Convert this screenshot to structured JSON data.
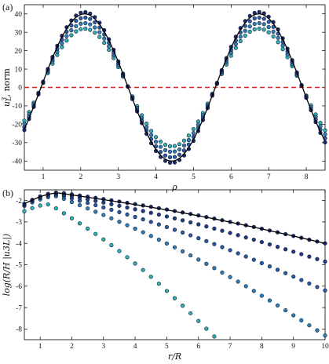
{
  "chart_data": [
    {
      "type": "scatter",
      "panel_label": "(a)",
      "xlabel": "ρ",
      "ylabel_main": "u",
      "ylabel_sup": "3",
      "ylabel_sub": "L",
      "ylabel_rest": ", norm",
      "xlim": [
        0.5,
        8.5
      ],
      "ylim": [
        -45,
        45
      ],
      "x_ticks": [
        1,
        2,
        3,
        4,
        5,
        6,
        7,
        8
      ],
      "y_ticks": [
        -40,
        -30,
        -20,
        -10,
        0,
        10,
        20,
        30,
        40
      ],
      "reference_line": {
        "y": 0,
        "style": "dashed",
        "color": "#e0201b"
      },
      "function_form": "A*sin(ρ - 1.27*(ρ - 0.5) - 4.05) — curves sampled every 0.125",
      "x_start": 0.5,
      "x_step": 0.125,
      "x_count": 65,
      "series": [
        {
          "amplitude": 40,
          "phase": 4.05,
          "freq": 1.355,
          "color": "#1a1e4c",
          "kind": "line"
        },
        {
          "amplitude": 41,
          "phase": 4.05,
          "freq": 1.355,
          "color": "#1e2a6e",
          "kind": "points"
        },
        {
          "amplitude": 38,
          "phase": 4.05,
          "freq": 1.355,
          "color": "#2b5aa5",
          "kind": "points"
        },
        {
          "amplitude": 35,
          "phase": 4.05,
          "freq": 1.355,
          "color": "#2f7fb6",
          "kind": "points"
        },
        {
          "amplitude": 32,
          "phase": 4.05,
          "freq": 1.355,
          "color": "#2fb0b0",
          "kind": "points"
        }
      ]
    },
    {
      "type": "scatter",
      "panel_label": "(b)",
      "xlabel": "r/R",
      "ylabel": "log(R/H |u3L|)",
      "xlim": [
        0.5,
        10
      ],
      "ylim": [
        -8.5,
        -1.5
      ],
      "x_ticks": [
        1,
        2,
        3,
        4,
        5,
        6,
        7,
        8,
        9,
        10
      ],
      "y_ticks": [
        -8,
        -7,
        -6,
        -5,
        -4,
        -3,
        -2
      ],
      "x_start": 0.5,
      "x_step": 0.25,
      "x_count": 39,
      "series": [
        {
          "peak_x": 1.6,
          "peak_y": -1.65,
          "start_y": -2.15,
          "end_y": -4.0,
          "color": "#1a1e4c",
          "kind": "line"
        },
        {
          "peak_x": 1.6,
          "peak_y": -1.62,
          "start_y": -2.15,
          "end_y": -4.0,
          "color": "#1e2a6e",
          "kind": "points"
        },
        {
          "peak_x": 1.6,
          "peak_y": -1.68,
          "start_y": -2.18,
          "end_y": -4.85,
          "color": "#223a84",
          "kind": "points"
        },
        {
          "peak_x": 1.55,
          "peak_y": -1.72,
          "start_y": -2.2,
          "end_y": -6.2,
          "color": "#2b5aa5",
          "kind": "points"
        },
        {
          "peak_x": 1.55,
          "peak_y": -1.8,
          "start_y": -2.25,
          "end_y": -8.3,
          "color": "#2f7fb6",
          "kind": "points"
        },
        {
          "peak_x": 1.3,
          "peak_y": -2.18,
          "start_y": -2.5,
          "end_y": -8.35,
          "end_x": 6.5,
          "color": "#2fb0b0",
          "kind": "points"
        }
      ]
    }
  ]
}
